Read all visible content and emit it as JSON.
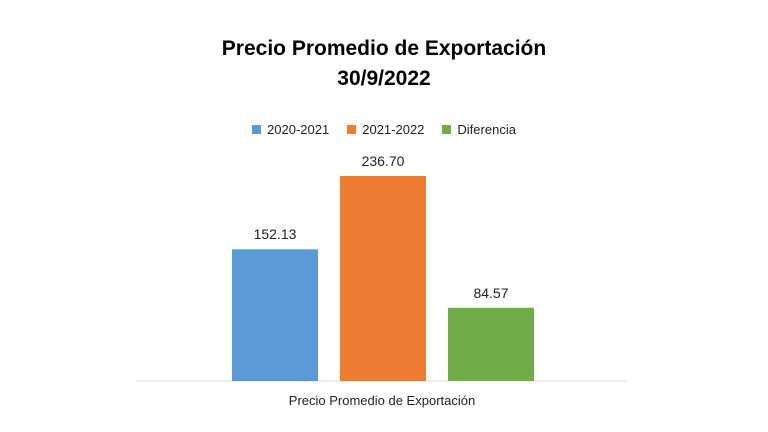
{
  "chart_data": {
    "type": "bar",
    "title": "Precio Promedio de Exportación",
    "subtitle": "30/9/2022",
    "categories": [
      "Precio Promedio de Exportación"
    ],
    "series": [
      {
        "name": "2020-2021",
        "values": [
          152.13
        ],
        "color": "#5B9BD5"
      },
      {
        "name": "2021-2022",
        "values": [
          236.7
        ],
        "color": "#ED7D31"
      },
      {
        "name": "Diferencia",
        "values": [
          84.57
        ],
        "color": "#70AD47"
      }
    ],
    "data_labels": [
      "152.13",
      "236.70",
      "84.57"
    ],
    "xlabel": "Precio Promedio de Exportación",
    "ylabel": "",
    "legend_position": "top",
    "grid": false
  }
}
